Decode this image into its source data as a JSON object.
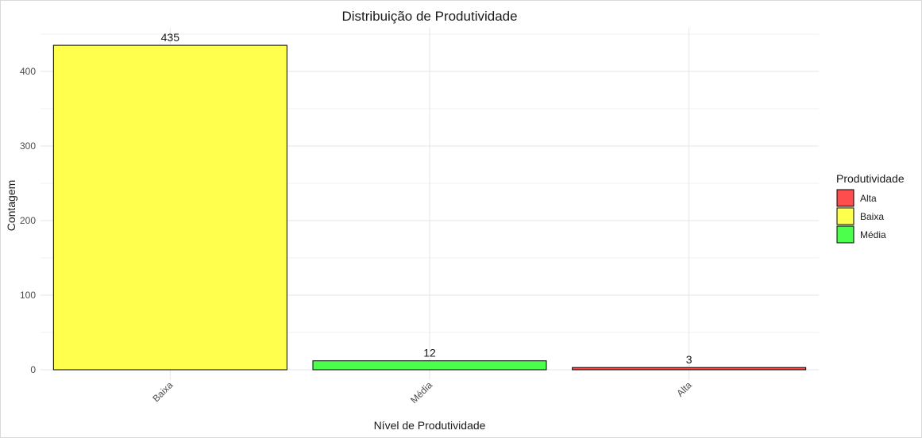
{
  "chart_data": {
    "type": "bar",
    "title": "Distribuição de Produtividade",
    "xlabel": "Nível de Produtividade",
    "ylabel": "Contagem",
    "categories": [
      "Baixa",
      "Média",
      "Alta"
    ],
    "values": [
      435,
      12,
      3
    ],
    "bar_colors": [
      "#ffff4d",
      "#4dff4d",
      "#ff4d4d"
    ],
    "ylim": [
      0,
      450
    ],
    "yticks": [
      0,
      100,
      200,
      300,
      400
    ],
    "grid": true,
    "legend": {
      "title": "Produtividade",
      "position": "right",
      "entries": [
        {
          "label": "Alta",
          "color": "#ff4d4d"
        },
        {
          "label": "Baixa",
          "color": "#ffff4d"
        },
        {
          "label": "Média",
          "color": "#4dff4d"
        }
      ]
    }
  }
}
